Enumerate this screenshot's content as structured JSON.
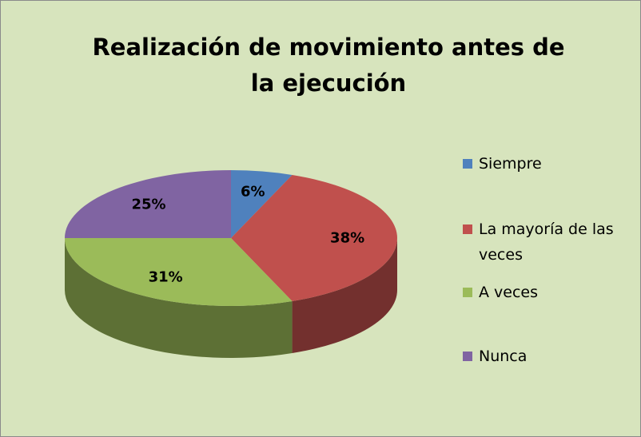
{
  "chart_data": {
    "type": "pie",
    "title": "Realización de movimiento antes de la ejecución",
    "categories": [
      "Siempre",
      "La mayoría de las veces",
      "A veces",
      "Nunca"
    ],
    "values": [
      6,
      38,
      31,
      25
    ],
    "value_labels": [
      "6%",
      "38%",
      "31%",
      "25%"
    ],
    "colors": [
      "#4f81bd",
      "#c0504d",
      "#9bbb59",
      "#8064a2"
    ],
    "legend": "right"
  }
}
